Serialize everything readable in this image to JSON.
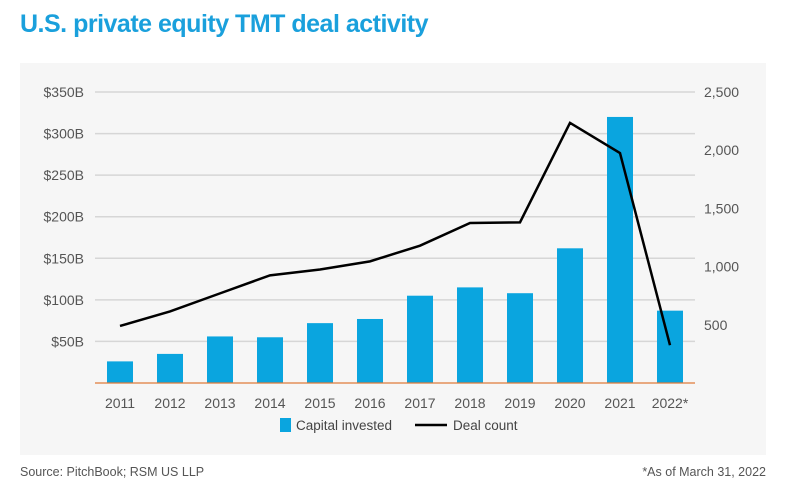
{
  "title": "U.S. private equity TMT deal activity",
  "source": "Source: PitchBook; RSM US LLP",
  "footnote": "*As of March 31, 2022",
  "chart_data": {
    "type": "bar",
    "categories": [
      "2011",
      "2012",
      "2013",
      "2014",
      "2015",
      "2016",
      "2017",
      "2018",
      "2019",
      "2020",
      "2021",
      "2022*"
    ],
    "series": [
      {
        "name": "Capital invested",
        "type": "bar",
        "axis": "left",
        "color": "#0aa5df",
        "values": [
          26,
          35,
          56,
          55,
          72,
          77,
          105,
          115,
          108,
          162,
          320,
          87
        ]
      },
      {
        "name": "Deal count",
        "type": "line",
        "axis": "right",
        "color": "#000000",
        "values": [
          490,
          615,
          770,
          925,
          975,
          1045,
          1180,
          1375,
          1380,
          2235,
          1975,
          325
        ]
      }
    ],
    "ylim_left": [
      0,
      350
    ],
    "ylim_right": [
      0,
      2500
    ],
    "left_ticks": [
      "$50B",
      "$100B",
      "$150B",
      "$200B",
      "$250B",
      "$300B",
      "$350B"
    ],
    "right_ticks": [
      "500",
      "1,000",
      "1,500",
      "2,000",
      "2,500"
    ],
    "grid": true,
    "legend_position": "bottom"
  }
}
